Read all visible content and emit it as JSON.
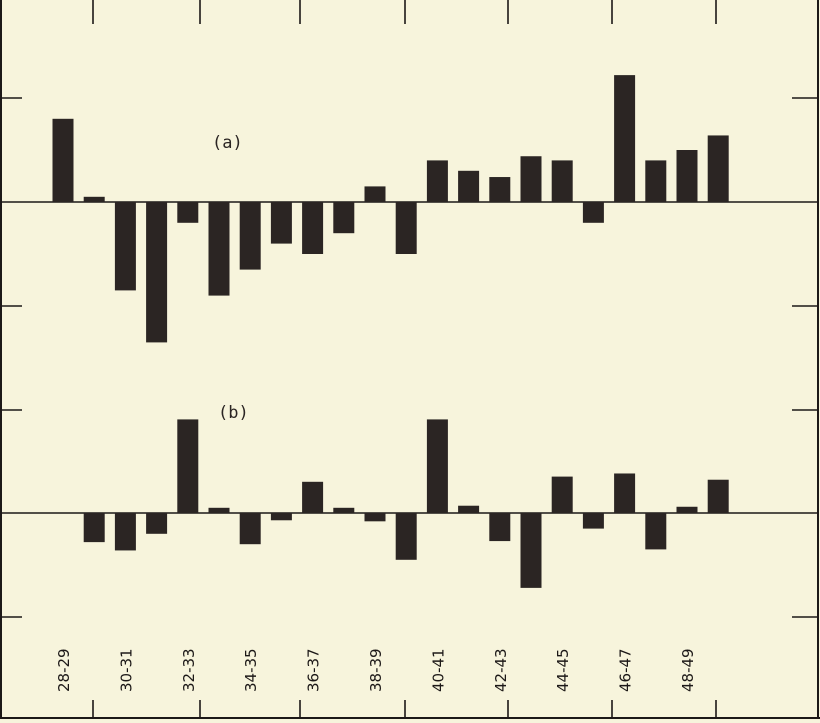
{
  "chart_data": [
    {
      "type": "bar",
      "panel_label": "(a)",
      "categories": [
        "28-29",
        "29-30",
        "30-31",
        "31-32",
        "32-33",
        "33-34",
        "34-35",
        "35-36",
        "36-37",
        "37-38",
        "38-39",
        "39-40",
        "40-41",
        "41-42",
        "42-43",
        "43-44",
        "44-45",
        "45-46",
        "46-47",
        "47-48",
        "48-49",
        "49-50"
      ],
      "values": [
        0.8,
        0.05,
        -0.85,
        -1.35,
        -0.2,
        -0.9,
        -0.65,
        -0.4,
        -0.5,
        -0.3,
        0.15,
        -0.5,
        0.4,
        0.3,
        0.24,
        0.44,
        0.4,
        -0.2,
        1.22,
        0.4,
        0.5,
        0.64
      ],
      "ylim": [
        -2,
        2
      ],
      "grid": false
    },
    {
      "type": "bar",
      "panel_label": "(b)",
      "categories": [
        "28-29",
        "29-30",
        "30-31",
        "31-32",
        "32-33",
        "33-34",
        "34-35",
        "35-36",
        "36-37",
        "37-38",
        "38-39",
        "39-40",
        "40-41",
        "41-42",
        "42-43",
        "43-44",
        "44-45",
        "45-46",
        "46-47",
        "47-48",
        "48-49",
        "49-50"
      ],
      "values": [
        0,
        -0.28,
        -0.36,
        -0.2,
        0.9,
        0.05,
        -0.3,
        -0.07,
        0.3,
        0.05,
        -0.08,
        -0.45,
        0.9,
        0.07,
        -0.27,
        -0.72,
        0.35,
        -0.15,
        0.38,
        -0.35,
        0.06,
        0.32
      ],
      "ylim": [
        -1,
        1
      ],
      "grid": false
    }
  ],
  "axis_labels": [
    "28-29",
    "30-31",
    "32-33",
    "34-35",
    "36-37",
    "38-39",
    "40-41",
    "42-43",
    "44-45",
    "46-47",
    "48-49"
  ]
}
